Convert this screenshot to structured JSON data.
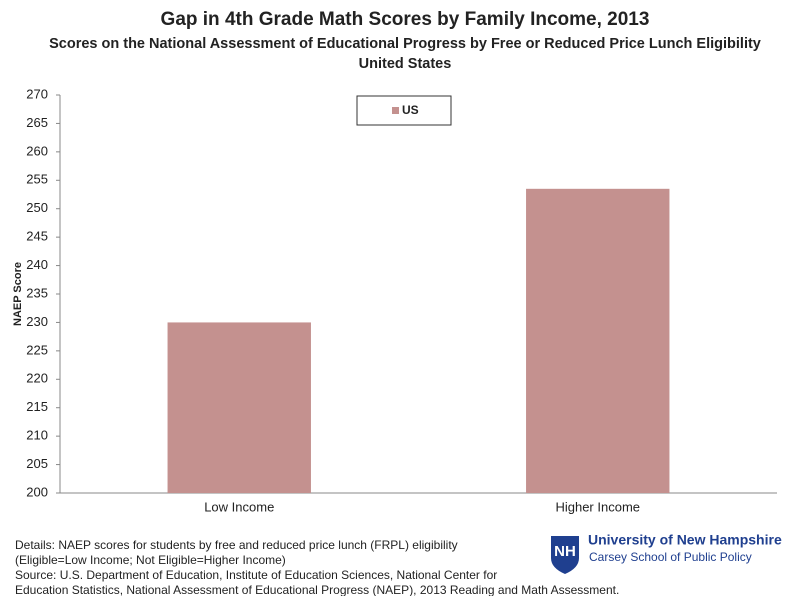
{
  "chart_data": {
    "type": "bar",
    "title": "Gap in 4th Grade Math Scores by Family Income, 2013",
    "subtitle": "Scores on the National Assessment of Educational Progress by Free or Reduced Price Lunch Eligibility",
    "region": "United States",
    "y_label": "NAEP Score",
    "categories": [
      "Low Income",
      "Higher Income"
    ],
    "series": [
      {
        "name": "US",
        "color": "#c4918f",
        "values": [
          230,
          253.5
        ]
      }
    ],
    "ylim": [
      200,
      270
    ],
    "yticks": [
      200,
      205,
      210,
      215,
      220,
      225,
      230,
      235,
      240,
      245,
      250,
      255,
      260,
      265,
      270
    ],
    "grid": false,
    "legend": "top"
  },
  "notes": [
    "Details: NAEP scores for students by free and reduced price lunch (FRPL) eligibility",
    "(Eligible=Low Income; Not Eligible=Higher Income)",
    "Source: U.S. Department of Education, Institute of Education Sciences, National Center for",
    "Education Statistics, National Assessment of Educational Progress (NAEP), 2013 Reading  and Math Assessment."
  ],
  "logo": {
    "name": "University of New Hampshire",
    "school": "Carsey School of Public Policy"
  }
}
